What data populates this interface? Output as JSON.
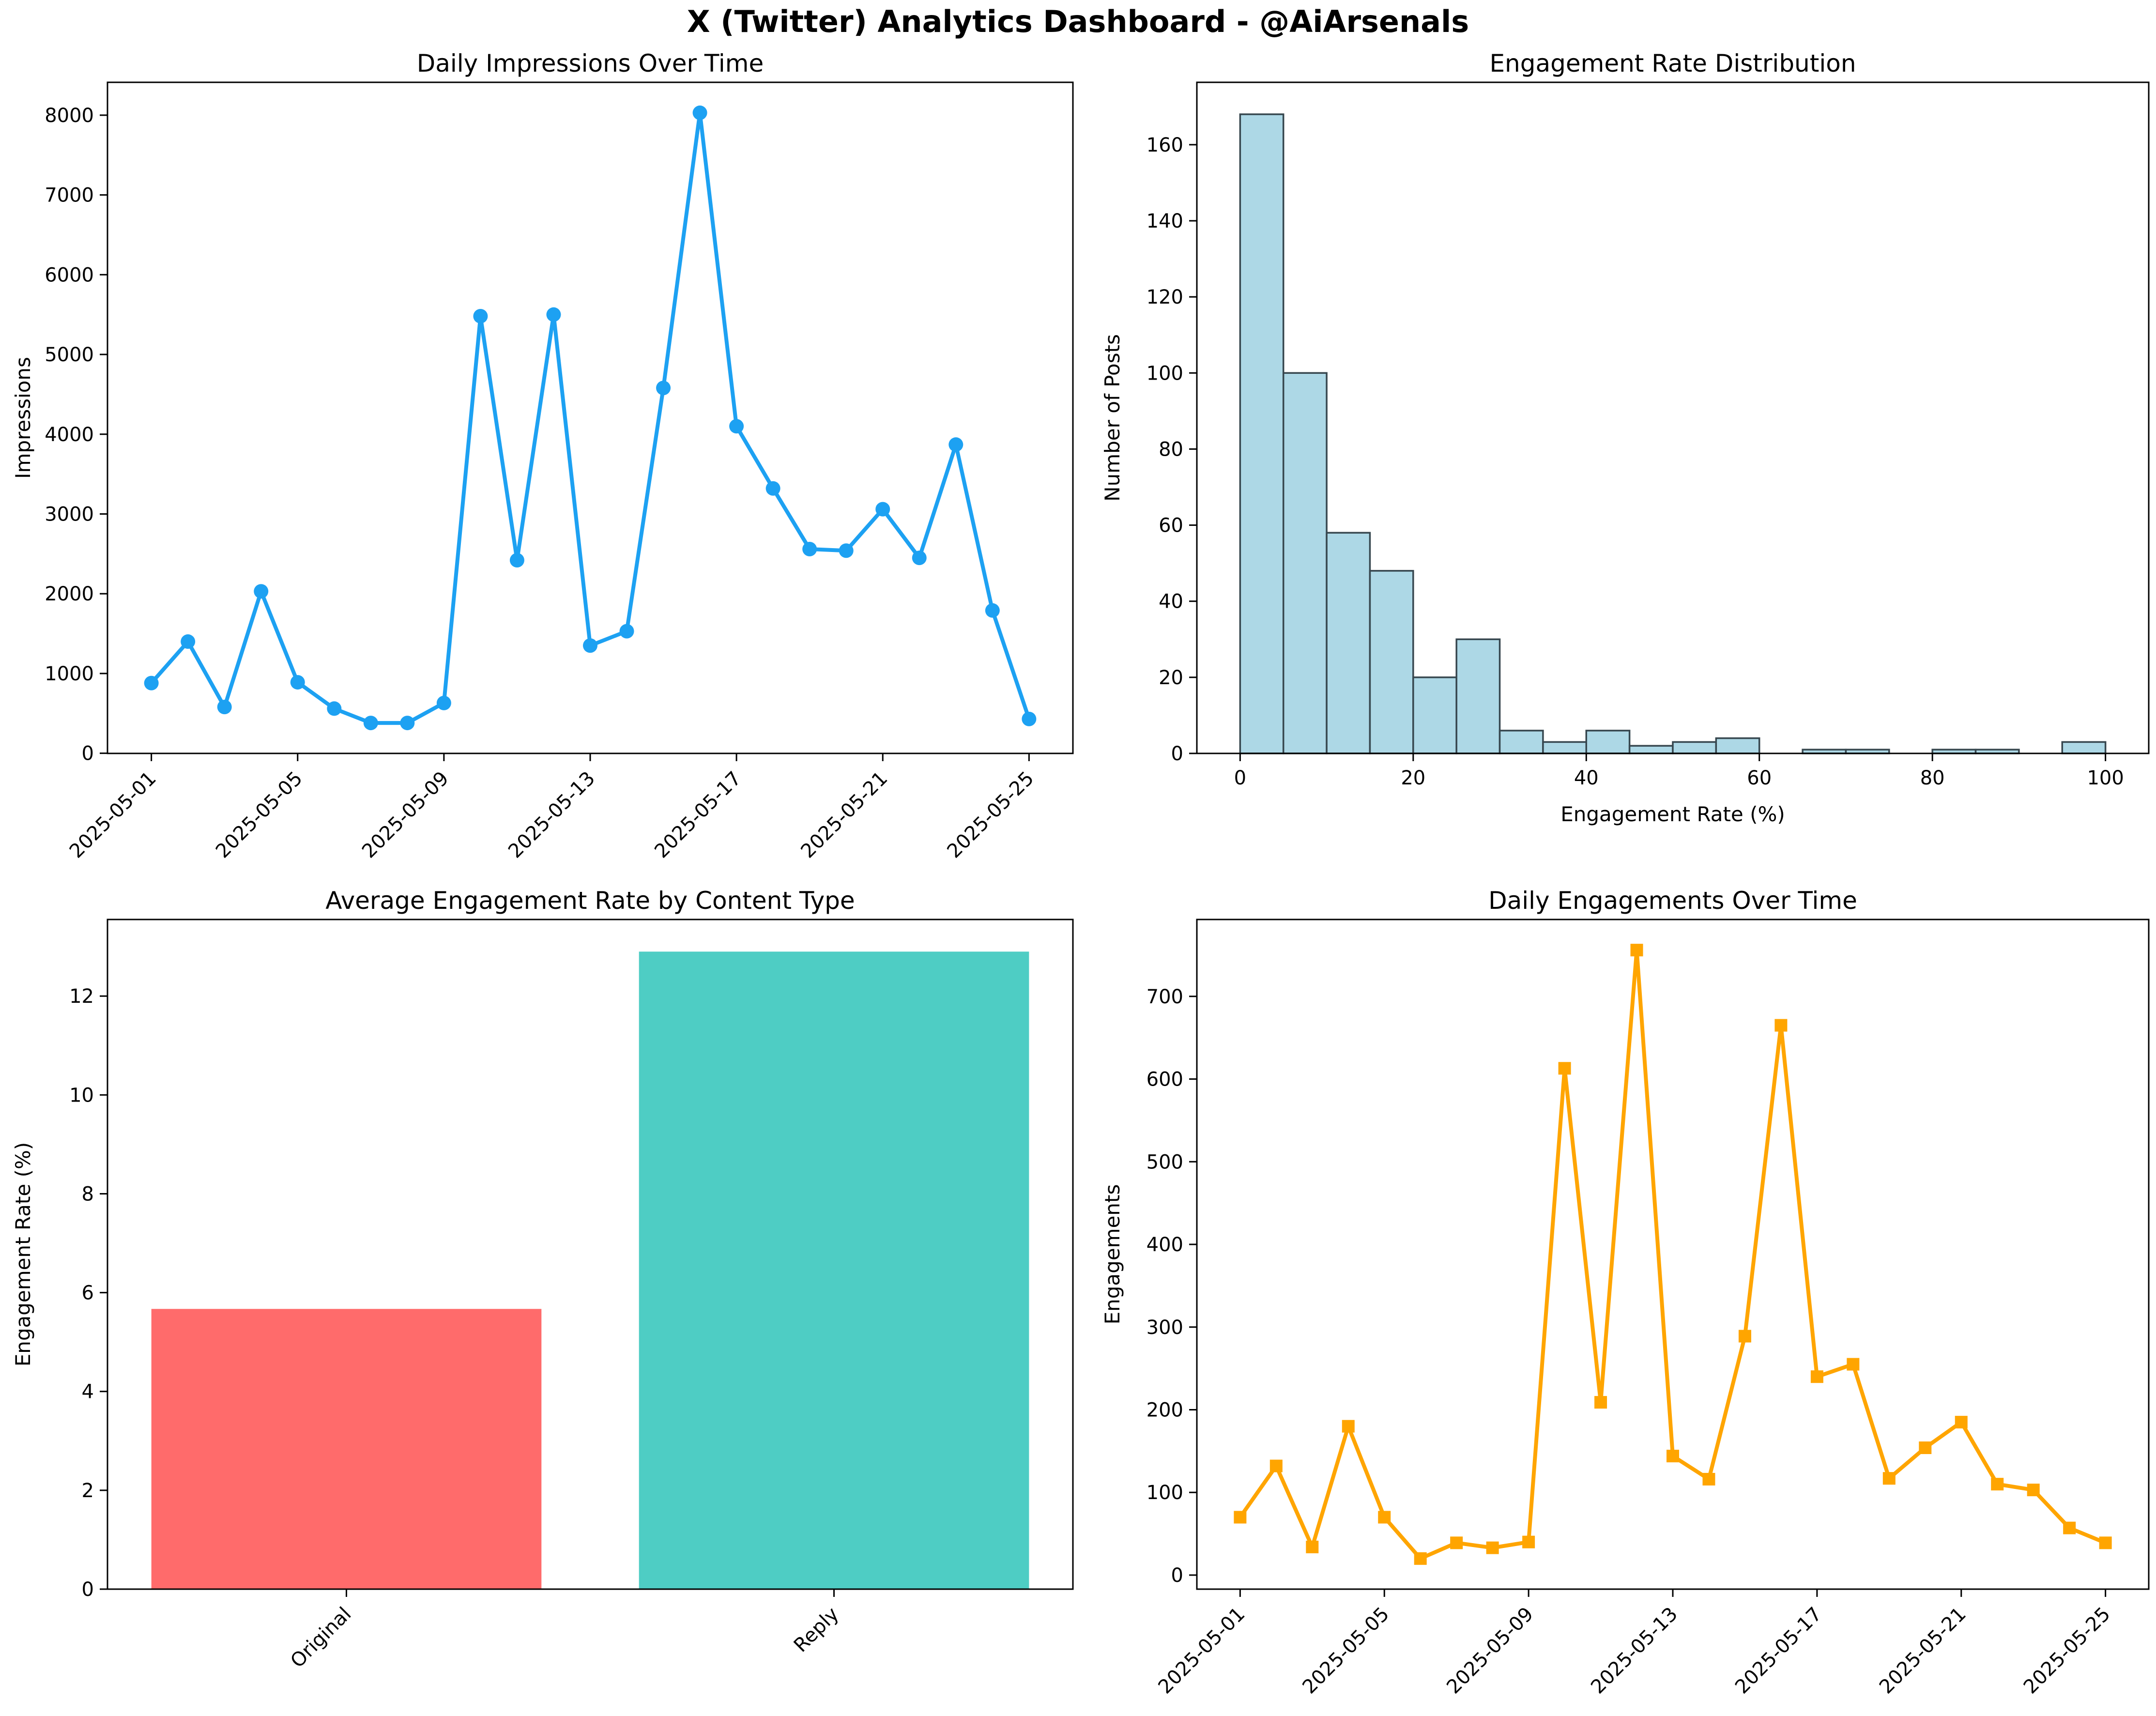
{
  "suptitle": "X (Twitter) Analytics Dashboard - @AiArsenals",
  "colors": {
    "impressions_line": "#1DA1F2",
    "engagements_line": "#FFA500",
    "hist_fill": "#ADD8E6",
    "hist_edge": "#37474F",
    "bar_original": "#FF6B6B",
    "bar_reply": "#4ECDC4",
    "axis": "#000000"
  },
  "chart_data": [
    {
      "id": "impressions",
      "type": "line",
      "title": "Daily Impressions Over Time",
      "ylabel": "Impressions",
      "marker": "circle",
      "color_key": "impressions_line",
      "x": [
        "2025-05-01",
        "2025-05-02",
        "2025-05-03",
        "2025-05-04",
        "2025-05-05",
        "2025-05-06",
        "2025-05-07",
        "2025-05-08",
        "2025-05-09",
        "2025-05-10",
        "2025-05-11",
        "2025-05-12",
        "2025-05-13",
        "2025-05-14",
        "2025-05-15",
        "2025-05-16",
        "2025-05-17",
        "2025-05-18",
        "2025-05-19",
        "2025-05-20",
        "2025-05-21",
        "2025-05-22",
        "2025-05-23",
        "2025-05-24",
        "2025-05-25"
      ],
      "values": [
        880,
        1400,
        580,
        2030,
        890,
        560,
        380,
        380,
        630,
        5480,
        2420,
        5500,
        1350,
        1530,
        4580,
        8030,
        4100,
        3320,
        2560,
        2540,
        3060,
        2450,
        3870,
        1790,
        430
      ],
      "yticks": [
        0,
        1000,
        2000,
        3000,
        4000,
        5000,
        6000,
        7000,
        8000
      ],
      "xtick_labels": [
        "2025-05-01",
        "2025-05-05",
        "2025-05-09",
        "2025-05-13",
        "2025-05-17",
        "2025-05-21",
        "2025-05-25"
      ],
      "xtick_every": 4,
      "xtick_rotation": 45,
      "ylim": [
        -2,
        8412
      ],
      "grid": false
    },
    {
      "id": "engagement_histogram",
      "type": "histogram",
      "title": "Engagement Rate Distribution",
      "xlabel": "Engagement Rate (%)",
      "ylabel": "Number of Posts",
      "bin_start": 0,
      "bin_width": 5,
      "counts": [
        168,
        100,
        58,
        48,
        20,
        30,
        6,
        3,
        6,
        2,
        3,
        4,
        0,
        1,
        1,
        0,
        1,
        1,
        0,
        3
      ],
      "yticks": [
        0,
        20,
        40,
        60,
        80,
        100,
        120,
        140,
        160
      ],
      "xticks": [
        0,
        20,
        40,
        60,
        80,
        100
      ],
      "xlim": [
        -5,
        105
      ],
      "ylim": [
        0,
        176.4
      ],
      "grid": false
    },
    {
      "id": "content_type",
      "type": "bar",
      "title": "Average Engagement Rate by Content Type",
      "ylabel": "Engagement Rate (%)",
      "categories": [
        "Original",
        "Reply"
      ],
      "values": [
        5.67,
        12.9
      ],
      "bar_color_keys": [
        "bar_original",
        "bar_reply"
      ],
      "yticks": [
        0,
        2,
        4,
        6,
        8,
        10,
        12
      ],
      "xtick_rotation": 45,
      "ylim": [
        0,
        13.55
      ],
      "grid": false
    },
    {
      "id": "engagements",
      "type": "line",
      "title": "Daily Engagements Over Time",
      "ylabel": "Engagements",
      "marker": "square",
      "color_key": "engagements_line",
      "x": [
        "2025-05-01",
        "2025-05-02",
        "2025-05-03",
        "2025-05-04",
        "2025-05-05",
        "2025-05-06",
        "2025-05-07",
        "2025-05-08",
        "2025-05-09",
        "2025-05-10",
        "2025-05-11",
        "2025-05-12",
        "2025-05-13",
        "2025-05-14",
        "2025-05-15",
        "2025-05-16",
        "2025-05-17",
        "2025-05-18",
        "2025-05-19",
        "2025-05-20",
        "2025-05-21",
        "2025-05-22",
        "2025-05-23",
        "2025-05-24",
        "2025-05-25"
      ],
      "values": [
        70,
        132,
        34,
        180,
        70,
        20,
        39,
        33,
        40,
        613,
        209,
        756,
        144,
        116,
        289,
        665,
        240,
        255,
        117,
        154,
        185,
        110,
        103,
        57,
        39
      ],
      "yticks": [
        0,
        100,
        200,
        300,
        400,
        500,
        600,
        700
      ],
      "xtick_labels": [
        "2025-05-01",
        "2025-05-05",
        "2025-05-09",
        "2025-05-13",
        "2025-05-17",
        "2025-05-21",
        "2025-05-25"
      ],
      "xtick_every": 4,
      "xtick_rotation": 45,
      "ylim": [
        -17,
        793
      ],
      "grid": false
    }
  ]
}
